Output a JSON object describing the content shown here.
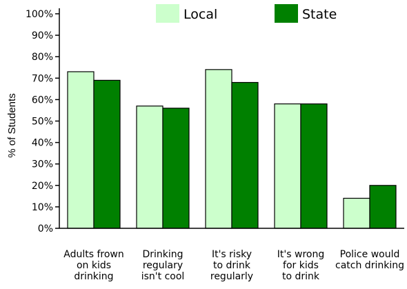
{
  "chart_data": {
    "type": "bar",
    "title": "",
    "xlabel": "",
    "ylabel": "% of Students",
    "ylim": [
      0,
      100
    ],
    "yticks": [
      "0%",
      "10%",
      "20%",
      "30%",
      "40%",
      "50%",
      "60%",
      "70%",
      "80%",
      "90%",
      "100%"
    ],
    "grid": false,
    "legend": "top",
    "categories": [
      [
        "Adults frown",
        "on kids",
        "drinking"
      ],
      [
        "Drinking",
        "regulary",
        "isn't cool"
      ],
      [
        "It's risky",
        "to drink",
        "regularly"
      ],
      [
        "It's wrong",
        "for kids",
        "to drink"
      ],
      [
        "Police would",
        "catch drinking"
      ]
    ],
    "series": [
      {
        "name": "Local",
        "color": "#ccffcc",
        "values": [
          73,
          57,
          74,
          58,
          14
        ]
      },
      {
        "name": "State",
        "color": "#008000",
        "values": [
          69,
          56,
          68,
          58,
          20
        ]
      }
    ]
  }
}
